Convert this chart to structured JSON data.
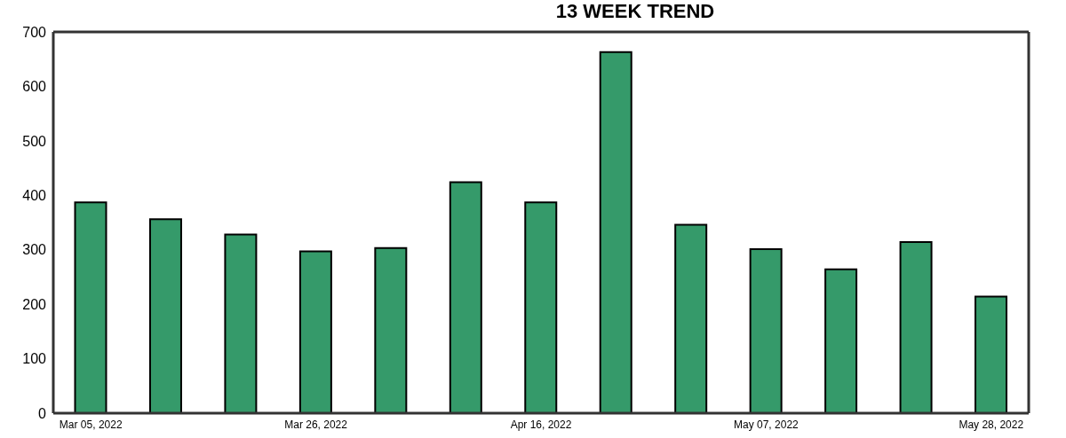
{
  "chart_data": {
    "type": "bar",
    "title": "13 WEEK TREND",
    "categories": [
      "Mar 05, 2022",
      null,
      null,
      "Mar 26, 2022",
      null,
      null,
      "Apr 16, 2022",
      null,
      null,
      "May 07, 2022",
      null,
      null,
      "May 28, 2022"
    ],
    "values": [
      387,
      356,
      328,
      297,
      303,
      424,
      387,
      663,
      346,
      301,
      264,
      314,
      214
    ],
    "color": "#359a6a",
    "ylim": [
      0,
      700
    ],
    "yticks": [
      0,
      100,
      200,
      300,
      400,
      500,
      600,
      700
    ],
    "grid": false
  }
}
